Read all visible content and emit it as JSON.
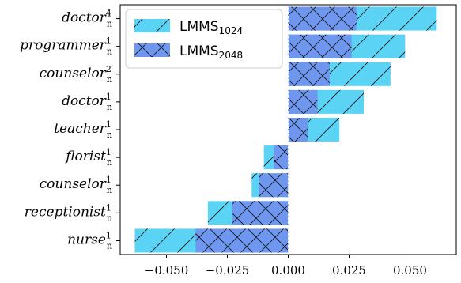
{
  "chart_data": {
    "type": "bar",
    "orientation": "horizontal",
    "categories": [
      {
        "word": "doctor",
        "sup": "4",
        "sub": "n"
      },
      {
        "word": "programmer",
        "sup": "1",
        "sub": "n"
      },
      {
        "word": "counselor",
        "sup": "2",
        "sub": "n"
      },
      {
        "word": "doctor",
        "sup": "1",
        "sub": "n"
      },
      {
        "word": "teacher",
        "sup": "1",
        "sub": "n"
      },
      {
        "word": "florist",
        "sup": "1",
        "sub": "n"
      },
      {
        "word": "counselor",
        "sup": "1",
        "sub": "n"
      },
      {
        "word": "receptionist",
        "sup": "1",
        "sub": "n"
      },
      {
        "word": "nurse",
        "sup": "1",
        "sub": "n"
      }
    ],
    "series": [
      {
        "name": "LMMS",
        "name_sub": "1024",
        "color": "#5bd3f5",
        "hatch": "/",
        "values": [
          0.061,
          0.048,
          0.042,
          0.031,
          0.021,
          -0.01,
          -0.015,
          -0.033,
          -0.063
        ]
      },
      {
        "name": "LMMS",
        "name_sub": "2048",
        "color": "#6f97ef",
        "hatch": "x",
        "values": [
          0.028,
          0.026,
          0.017,
          0.012,
          0.008,
          -0.006,
          -0.012,
          -0.023,
          -0.038
        ]
      }
    ],
    "xticks": [
      "−0.050",
      "−0.025",
      "0.000",
      "0.025",
      "0.050"
    ],
    "xtick_values": [
      -0.05,
      -0.025,
      0.0,
      0.025,
      0.05
    ],
    "xlim": [
      -0.069,
      0.069
    ],
    "xlabel": "",
    "ylabel": "",
    "title": "",
    "grid": false,
    "legend": "top-left"
  }
}
